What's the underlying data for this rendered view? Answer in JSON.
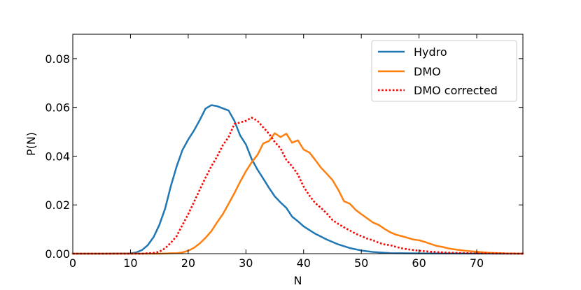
{
  "chart_data": {
    "type": "line",
    "title": "",
    "xlabel": "N",
    "ylabel": "P(N)",
    "xlim": [
      0,
      78
    ],
    "ylim": [
      0,
      0.09
    ],
    "grid": false,
    "legend_position": "top-right",
    "x_ticks": [
      0,
      10,
      20,
      30,
      40,
      50,
      60,
      70
    ],
    "x_tick_labels": [
      "0",
      "10",
      "20",
      "30",
      "40",
      "50",
      "60",
      "70"
    ],
    "y_ticks": [
      0,
      0.02,
      0.04,
      0.06,
      0.08
    ],
    "y_tick_labels": [
      "0.00",
      "0.02",
      "0.04",
      "0.06",
      "0.08"
    ],
    "series": [
      {
        "name": "Hydro",
        "color": "#1f77b4",
        "style": "solid",
        "x": [
          0,
          5,
          10,
          11,
          12,
          13,
          14,
          15,
          16,
          17,
          18,
          19,
          20,
          21,
          22,
          23,
          24,
          25,
          26,
          27,
          28,
          29,
          30,
          31,
          32,
          33,
          34,
          35,
          36,
          37,
          38,
          39,
          40,
          42,
          44,
          46,
          48,
          50,
          52,
          55,
          60,
          78
        ],
        "y": [
          0,
          0,
          0.0001,
          0.0005,
          0.0015,
          0.0035,
          0.0068,
          0.0118,
          0.0185,
          0.0278,
          0.0358,
          0.0425,
          0.0468,
          0.0505,
          0.0548,
          0.0595,
          0.0609,
          0.0605,
          0.0596,
          0.0587,
          0.0545,
          0.0485,
          0.0448,
          0.0388,
          0.0345,
          0.0308,
          0.027,
          0.0235,
          0.021,
          0.0188,
          0.0152,
          0.0133,
          0.0112,
          0.0082,
          0.0058,
          0.0038,
          0.0023,
          0.0013,
          0.0007,
          0.0002,
          0.0001,
          0
        ]
      },
      {
        "name": "DMO",
        "color": "#ff7f0e",
        "style": "solid",
        "x": [
          0,
          15,
          18,
          19,
          20,
          21,
          22,
          23,
          24,
          25,
          26,
          27,
          28,
          29,
          30,
          31,
          32,
          33,
          34,
          35,
          36,
          37,
          38,
          39,
          40,
          41,
          42,
          43,
          44,
          45,
          46,
          47,
          48,
          49,
          50,
          51,
          52,
          53,
          54,
          55,
          56,
          57,
          58,
          59,
          60,
          61,
          62,
          63,
          64,
          65,
          66,
          67,
          68,
          70,
          72,
          75,
          78
        ],
        "y": [
          0,
          0,
          0.0002,
          0.0005,
          0.0012,
          0.0024,
          0.0042,
          0.0065,
          0.0092,
          0.0128,
          0.0162,
          0.0205,
          0.0248,
          0.0295,
          0.0338,
          0.0375,
          0.0405,
          0.0452,
          0.0462,
          0.0494,
          0.0478,
          0.0492,
          0.0455,
          0.0465,
          0.0427,
          0.0415,
          0.0385,
          0.0353,
          0.0328,
          0.0302,
          0.0262,
          0.0215,
          0.0205,
          0.018,
          0.0162,
          0.0145,
          0.0128,
          0.0118,
          0.0102,
          0.0088,
          0.0078,
          0.0072,
          0.0065,
          0.0058,
          0.0055,
          0.0048,
          0.004,
          0.0032,
          0.0028,
          0.0022,
          0.0018,
          0.0015,
          0.0012,
          0.0008,
          0.0004,
          0.0001,
          0
        ]
      },
      {
        "name": "DMO corrected",
        "color": "#ff0000",
        "style": "dotted",
        "x": [
          0,
          12,
          14,
          15,
          16,
          17,
          18,
          19,
          20,
          21,
          22,
          23,
          24,
          25,
          26,
          27,
          28,
          29,
          30,
          31,
          32,
          33,
          34,
          35,
          36,
          37,
          38,
          39,
          40,
          41,
          42,
          43,
          44,
          45,
          46,
          47,
          48,
          49,
          50,
          51,
          52,
          53,
          54,
          55,
          56,
          57,
          58,
          60,
          62,
          65,
          70,
          78
        ],
        "y": [
          0,
          0,
          0.0003,
          0.0008,
          0.0022,
          0.0045,
          0.0072,
          0.0118,
          0.0162,
          0.0212,
          0.0262,
          0.0312,
          0.0358,
          0.0398,
          0.0445,
          0.0478,
          0.0532,
          0.0538,
          0.0545,
          0.0558,
          0.0545,
          0.0518,
          0.0492,
          0.0458,
          0.0432,
          0.0385,
          0.0358,
          0.0325,
          0.0275,
          0.0238,
          0.0208,
          0.0188,
          0.0165,
          0.0138,
          0.0122,
          0.0108,
          0.0095,
          0.0082,
          0.0072,
          0.0062,
          0.0055,
          0.0045,
          0.0038,
          0.0035,
          0.0028,
          0.0022,
          0.0018,
          0.0012,
          0.0008,
          0.0004,
          0.0001,
          0
        ]
      }
    ]
  }
}
